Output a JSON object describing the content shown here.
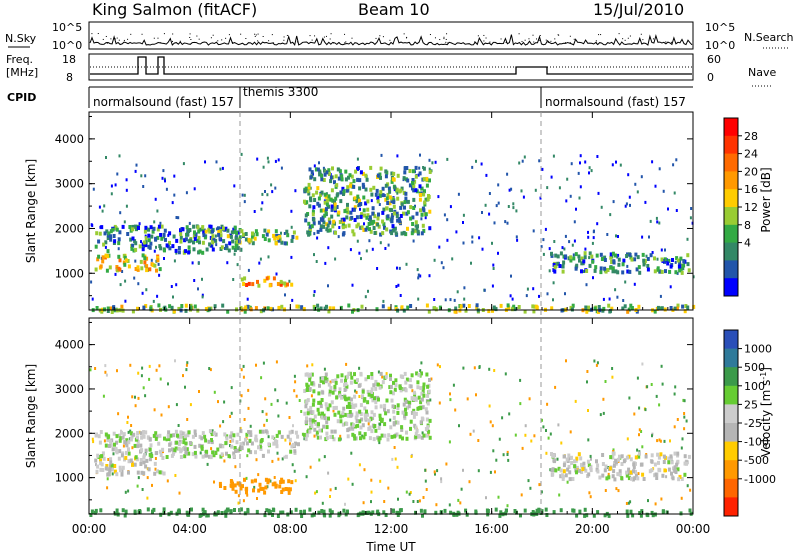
{
  "header": {
    "station": "King Salmon (fitACF)",
    "beam": "Beam 10",
    "date": "15/Jul/2010"
  },
  "summary_panels": {
    "nsky_label": "N.Sky",
    "nsky_axis_ticks": [
      "10^5",
      "10^0"
    ],
    "nsearch_label": "N.Search",
    "freq_label_line1": "Freq.",
    "freq_label_line2": "[MHz]",
    "freq_ticks": [
      "18",
      "8"
    ],
    "nave_label": "Nave",
    "nave_ticks": [
      "60",
      "0"
    ],
    "cpid_label": "CPID",
    "cpid_segments": [
      {
        "start_hour": 0,
        "end_hour": 6,
        "label": "normalsound (fast) 157"
      },
      {
        "start_hour": 6,
        "end_hour": 18,
        "label": "themis 3300"
      },
      {
        "start_hour": 18,
        "end_hour": 24,
        "label": "normalsound (fast) 157"
      }
    ]
  },
  "power_colorbar": {
    "label": "Power [dB]",
    "ticks": [
      "28",
      "24",
      "20",
      "16",
      "12",
      "8",
      "4"
    ],
    "colors": [
      "#ff0000",
      "#ff3300",
      "#ff6a00",
      "#ff9900",
      "#ffcc00",
      "#99cc33",
      "#33aa44",
      "#338866",
      "#2255aa",
      "#0000ff"
    ]
  },
  "velocity_colorbar": {
    "label": "Velocity [m s",
    "label_sup": "-1",
    "label_end": "]",
    "ticks": [
      "1000",
      "500",
      "100",
      "25",
      "-25",
      "-100",
      "-500",
      "-1000"
    ],
    "colors": [
      "#2a4fb8",
      "#2f7a9a",
      "#3b9a4a",
      "#66cc33",
      "#cccccc",
      "#b5b5b5",
      "#ffcc00",
      "#ff9900",
      "#ff6600",
      "#ff2200"
    ]
  },
  "chart_data": [
    {
      "type": "heatmap",
      "name": "power",
      "xlabel": "Time UT",
      "ylabel": "Slant Range [km]",
      "x_ticks": [
        "00:00",
        "04:00",
        "08:00",
        "12:00",
        "16:00",
        "20:00",
        "00:00"
      ],
      "y_ticks": [
        "4000",
        "3000",
        "2000",
        "1000"
      ],
      "xlim_hours": [
        0,
        24
      ],
      "ylim_km": [
        180,
        4600
      ],
      "features": [
        {
          "t0": 0.2,
          "t1": 2.8,
          "r0": 1100,
          "r1": 1450,
          "level": 0.55
        },
        {
          "t0": 0.2,
          "t1": 6.0,
          "r0": 1500,
          "r1": 2100,
          "level": 0.25
        },
        {
          "t0": 4.5,
          "t1": 8.3,
          "r0": 1700,
          "r1": 2000,
          "level": 0.35
        },
        {
          "t0": 6.0,
          "t1": 8.0,
          "r0": 750,
          "r1": 950,
          "level": 0.65
        },
        {
          "t0": 8.5,
          "t1": 13.5,
          "r0": 1900,
          "r1": 3400,
          "level": 0.3
        },
        {
          "t0": 18.3,
          "t1": 23.8,
          "r0": 1050,
          "r1": 1500,
          "level": 0.25
        },
        {
          "t0": 0.0,
          "t1": 24.0,
          "r0": 180,
          "r1": 330,
          "level": 0.4
        }
      ]
    },
    {
      "type": "heatmap",
      "name": "velocity",
      "xlabel": "Time UT",
      "ylabel": "Slant Range [km]",
      "x_ticks": [
        "00:00",
        "04:00",
        "08:00",
        "12:00",
        "16:00",
        "20:00",
        "00:00"
      ],
      "y_ticks": [
        "4000",
        "3000",
        "2000",
        "1000"
      ],
      "xlim_hours": [
        0,
        24
      ],
      "ylim_km": [
        180,
        4600
      ],
      "features": [
        {
          "t0": 0.2,
          "t1": 3.0,
          "r0": 1100,
          "r1": 1500,
          "v": 0
        },
        {
          "t0": 0.2,
          "t1": 8.3,
          "r0": 1500,
          "r1": 2100,
          "v": 10
        },
        {
          "t0": 5.0,
          "t1": 8.0,
          "r0": 700,
          "r1": 1000,
          "v": -300
        },
        {
          "t0": 8.5,
          "t1": 13.5,
          "r0": 1900,
          "r1": 3400,
          "v": 20
        },
        {
          "t0": 18.3,
          "t1": 23.8,
          "r0": 1000,
          "r1": 1600,
          "v": 0
        },
        {
          "t0": 0.0,
          "t1": 24.0,
          "r0": 180,
          "r1": 330,
          "v": 150
        }
      ]
    }
  ]
}
